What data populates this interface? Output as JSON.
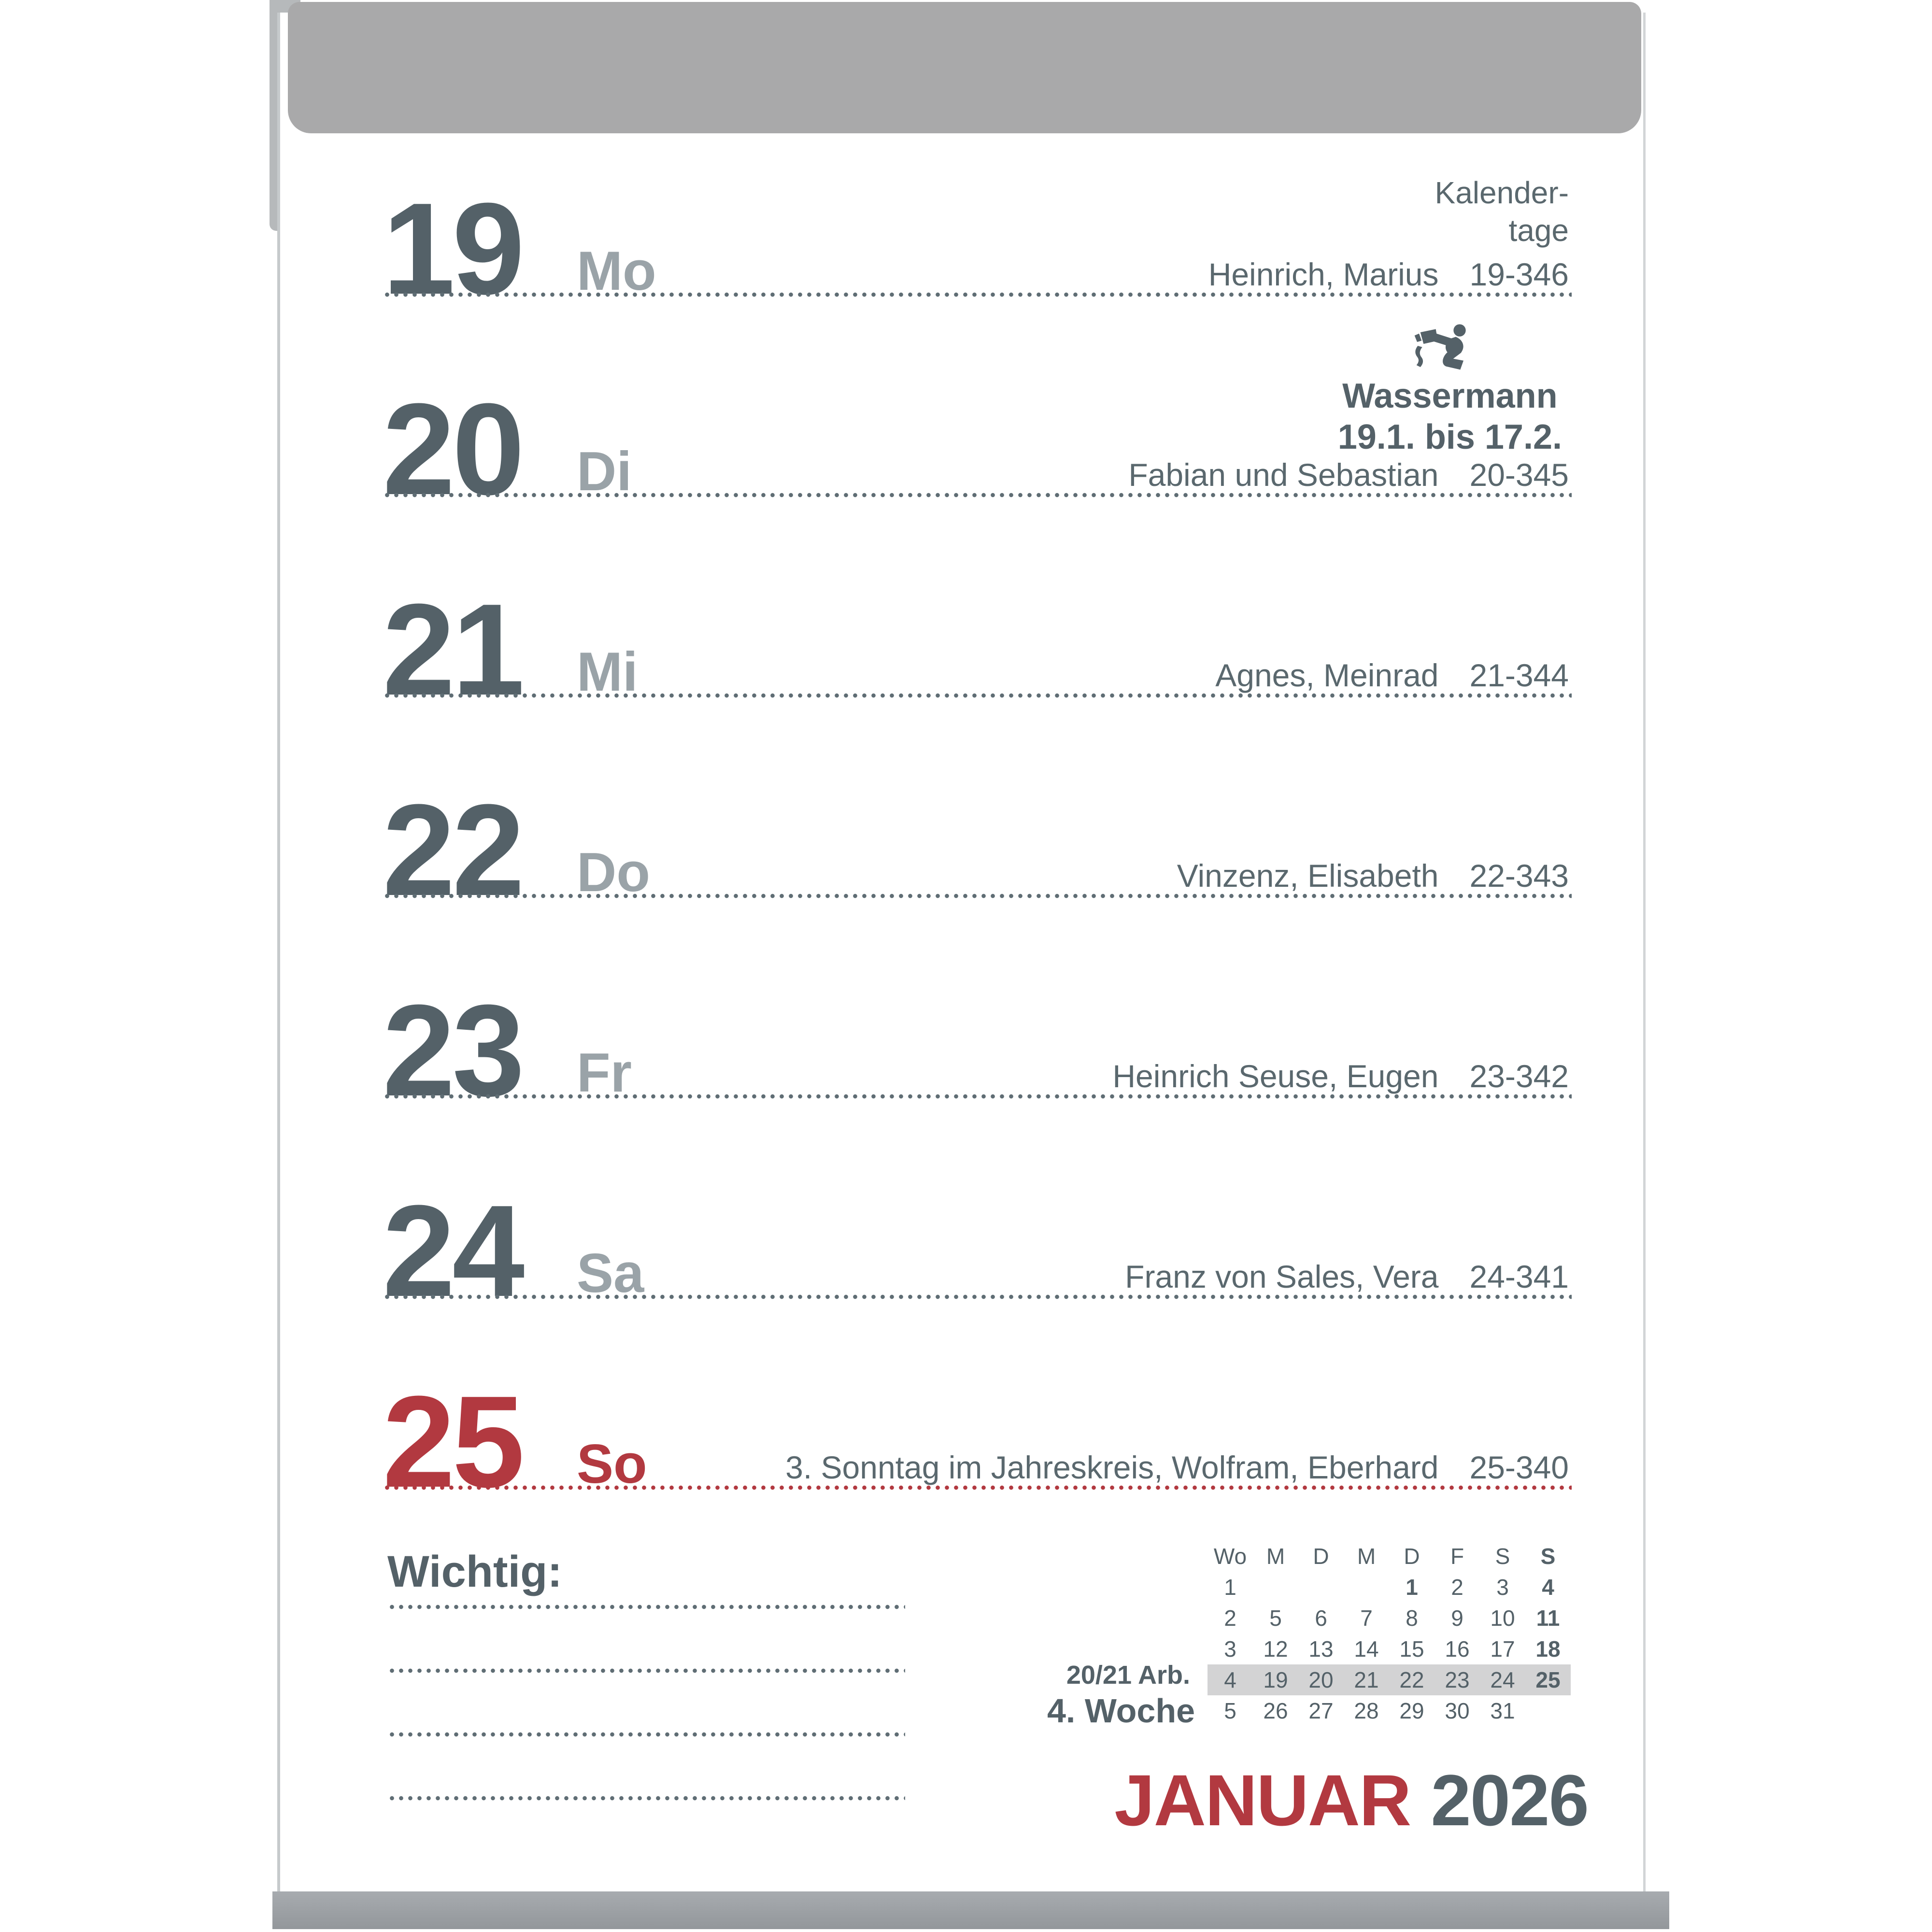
{
  "colors": {
    "accent_red": "#b23940",
    "slate_text": "#546168",
    "weekday_gray": "#9aa3a8",
    "band_gray": "#a9a9aa",
    "week_highlight_gray": "#d3d3d4"
  },
  "kalendertage": [
    "Kalender-",
    "tage"
  ],
  "zodiac": {
    "icon": "aquarius-icon",
    "name": "Wassermann",
    "dates": "19.1. bis 17.2."
  },
  "days": [
    {
      "number": "19",
      "weekday": "Mo",
      "names": "Heinrich, Marius",
      "code": "19-346"
    },
    {
      "number": "20",
      "weekday": "Di",
      "names": "Fabian und Sebastian",
      "code": "20-345"
    },
    {
      "number": "21",
      "weekday": "Mi",
      "names": "Agnes, Meinrad",
      "code": "21-344"
    },
    {
      "number": "22",
      "weekday": "Do",
      "names": "Vinzenz, Elisabeth",
      "code": "22-343"
    },
    {
      "number": "23",
      "weekday": "Fr",
      "names": "Heinrich Seuse, Eugen",
      "code": "23-342"
    },
    {
      "number": "24",
      "weekday": "Sa",
      "names": "Franz von Sales, Vera",
      "code": "24-341"
    },
    {
      "number": "25",
      "weekday": "So",
      "names": "3. Sonntag im Jahreskreis, Wolfram, Eberhard",
      "code": "25-340"
    }
  ],
  "labels": {
    "wichtig": "Wichtig:"
  },
  "mini_calendar": {
    "header": [
      "Wo",
      "M",
      "D",
      "M",
      "D",
      "F",
      "S",
      "S"
    ],
    "header_bold": [
      7
    ],
    "rows": [
      {
        "label": "",
        "cells": [
          "1",
          "",
          "",
          "",
          "1",
          "2",
          "3",
          "4"
        ],
        "bold": [
          4,
          7
        ],
        "highlight": false
      },
      {
        "label": "",
        "cells": [
          "2",
          "5",
          "6",
          "7",
          "8",
          "9",
          "10",
          "11"
        ],
        "bold": [
          7
        ],
        "highlight": false
      },
      {
        "label": "",
        "cells": [
          "3",
          "12",
          "13",
          "14",
          "15",
          "16",
          "17",
          "18"
        ],
        "bold": [
          7
        ],
        "highlight": false
      },
      {
        "label": "20/21 Arb.",
        "cells": [
          "4",
          "19",
          "20",
          "21",
          "22",
          "23",
          "24",
          "25"
        ],
        "bold": [
          7
        ],
        "highlight": true
      },
      {
        "label": "4. Woche",
        "cells": [
          "5",
          "26",
          "27",
          "28",
          "29",
          "30",
          "31",
          ""
        ],
        "bold": [],
        "highlight": false
      }
    ]
  },
  "month_title": {
    "month": "JANUAR",
    "year": "2026"
  }
}
